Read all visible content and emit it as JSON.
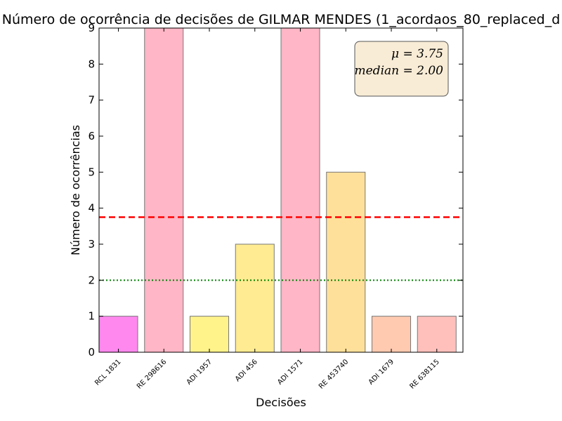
{
  "chart_data": {
    "type": "bar",
    "title": "Número de ocorrência de decisões de GILMAR MENDES (1_acordaos_80_replaced_d",
    "xlabel": "Decisões",
    "ylabel": "Número de ocorrências",
    "ylim": [
      0,
      9
    ],
    "yticks": [
      "0",
      "1",
      "2",
      "3",
      "4",
      "5",
      "6",
      "7",
      "8",
      "9"
    ],
    "categories": [
      "RCL 1831",
      "RE 298616",
      "ADI 1957",
      "ADI 456",
      "ADI 1571",
      "RE 453740",
      "ADI 1679",
      "RE 638115"
    ],
    "values": [
      1,
      9,
      1,
      3,
      9,
      5,
      1,
      1
    ],
    "bar_colors": [
      "#ff88ee",
      "#ffb6c6",
      "#fff38a",
      "#ffeb91",
      "#ffb6c6",
      "#ffe09a",
      "#ffcab0",
      "#ffc0bc"
    ],
    "mean_line": {
      "value": 3.75,
      "color": "#ff0000",
      "style": "dashed"
    },
    "median_line": {
      "value": 2.0,
      "color": "#008000",
      "style": "dotted"
    },
    "stats_box": {
      "mean_text": "μ = 3.75",
      "median_text": "median = 2.00",
      "background": "#f9ecd6",
      "placement": "top-right"
    },
    "grid": false
  }
}
